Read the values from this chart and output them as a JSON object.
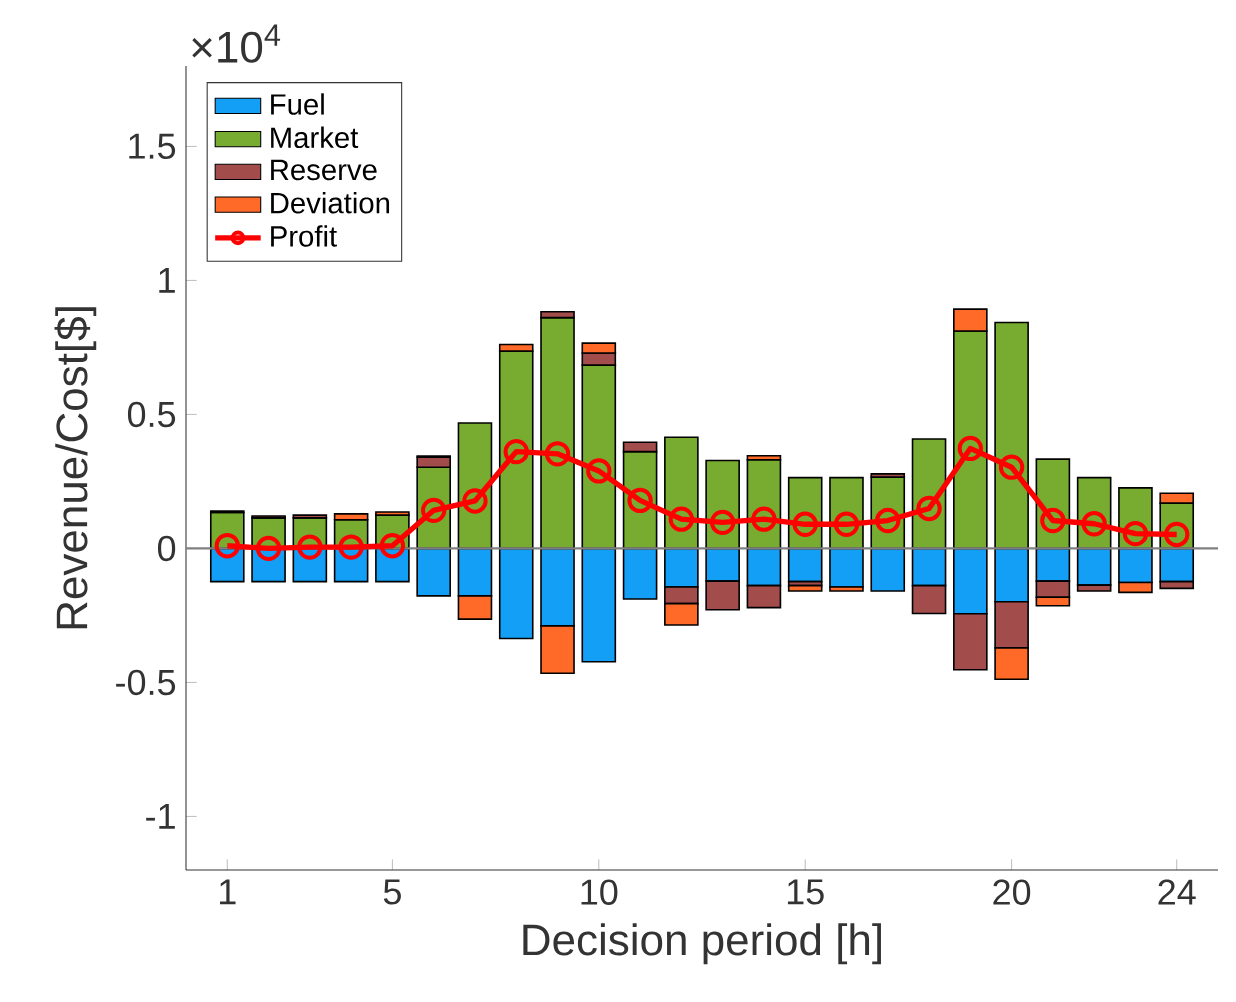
{
  "chart_data": {
    "type": "bar",
    "stacked": true,
    "xlabel": "Decision period [h]",
    "ylabel": "Revenue/Cost[$]",
    "annotations": [
      "×10$^{4}$"
    ],
    "x": [
      1,
      2,
      3,
      4,
      5,
      6,
      7,
      8,
      9,
      10,
      11,
      12,
      13,
      14,
      15,
      16,
      17,
      18,
      19,
      20,
      21,
      22,
      23,
      24
    ],
    "xlim": [
      0,
      25
    ],
    "xticks": [
      1,
      5,
      10,
      15,
      20,
      24
    ],
    "ylim": [
      -1.2,
      1.8
    ],
    "yticks": [
      -1,
      -0.5,
      0,
      0.5,
      1,
      1.5
    ],
    "legend": "top left",
    "ref_lines": [
      {
        "axis": "y",
        "value": 0,
        "color": "#808080"
      }
    ],
    "series": [
      {
        "name": "Fuel",
        "color": "#139ff5",
        "values": [
          -0.124,
          -0.124,
          -0.124,
          -0.124,
          -0.124,
          -0.177,
          -0.177,
          -0.336,
          -0.289,
          -0.423,
          -0.189,
          -0.144,
          -0.122,
          -0.139,
          -0.124,
          -0.144,
          -0.159,
          -0.139,
          -0.244,
          -0.199,
          -0.122,
          -0.137,
          -0.127,
          -0.124
        ]
      },
      {
        "name": "Market",
        "color": "#77ac30",
        "values": [
          0.134,
          0.114,
          0.114,
          0.107,
          0.124,
          0.303,
          0.468,
          0.736,
          0.861,
          0.684,
          0.361,
          0.415,
          0.328,
          0.331,
          0.264,
          0.264,
          0.266,
          0.408,
          0.811,
          0.843,
          0.333,
          0.264,
          0.226,
          0.169
        ]
      },
      {
        "name": "Reserve",
        "color": "#a24c4c",
        "values": [
          0.005,
          0.007,
          0.01,
          0,
          0,
          0.037,
          0,
          0,
          0.022,
          0.045,
          0.035,
          -0.062,
          -0.107,
          -0.082,
          -0.015,
          0,
          0.012,
          -0.104,
          -0.209,
          -0.172,
          -0.06,
          -0.022,
          0,
          -0.025
        ]
      },
      {
        "name": "Deviation",
        "color": "#ff6a28",
        "values": [
          0,
          0,
          0,
          0.022,
          0.012,
          0.005,
          -0.087,
          0.025,
          -0.177,
          0.037,
          0,
          -0.08,
          0,
          0.015,
          -0.02,
          -0.015,
          0,
          0,
          0.082,
          -0.117,
          -0.032,
          0,
          -0.037,
          0.037
        ]
      },
      {
        "name": "Profit",
        "type": "line",
        "color": "#ff0000",
        "marker": "circle",
        "line_style": "solid",
        "values": [
          0.01,
          0,
          0.005,
          0.005,
          0.01,
          0.142,
          0.177,
          0.361,
          0.353,
          0.289,
          0.179,
          0.109,
          0.097,
          0.109,
          0.09,
          0.09,
          0.104,
          0.149,
          0.373,
          0.303,
          0.104,
          0.092,
          0.055,
          0.052
        ]
      }
    ]
  }
}
